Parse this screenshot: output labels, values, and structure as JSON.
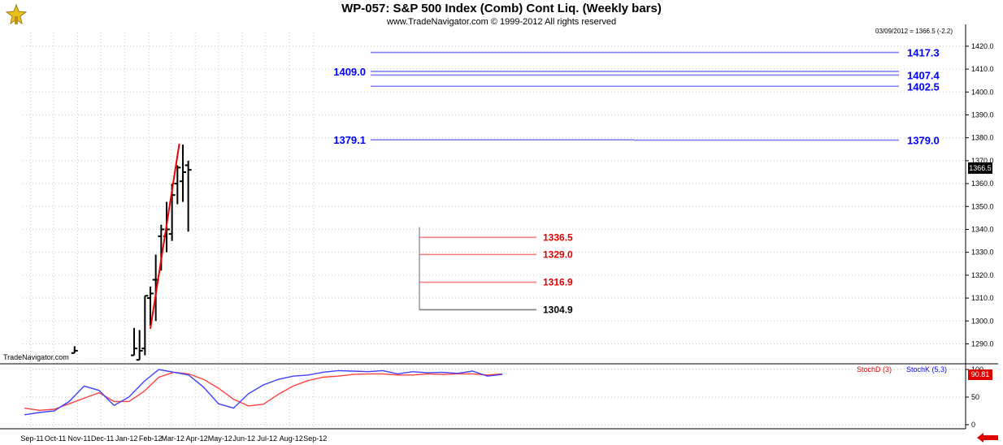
{
  "header": {
    "title": "WP-057:  S&P 500 Index (Comb) Cont Liq.  (Weekly bars)",
    "subtitle": "www.TradeNavigator.com © 1999-2012 All rights reserved",
    "info": "03/09/2012 = 1366.5 (-2.2)",
    "watermark": "TradeNavigator.com",
    "last_price_label": "1366.5",
    "stoch_value_label": "90.81",
    "stochd_label": "StochD (3)",
    "stochk_label": "StochK (5,3)"
  },
  "colors": {
    "blue_levels": "#0000ff",
    "blue_lines": "#8080ff",
    "red_levels": "#e00000",
    "red_lines": "#ff8080",
    "gray_line": "#808080",
    "bars": "#000000",
    "trend": "#ee0000",
    "stochd": "#ff4040",
    "stochk": "#4040ff",
    "grid": "#c8c8c8"
  },
  "chart_data": {
    "type": "bar",
    "title": "WP-057:  S&P 500 Index (Comb) Cont Liq.  (Weekly bars)",
    "y_ticks": [
      1290,
      1300,
      1310,
      1320,
      1330,
      1340,
      1350,
      1360,
      1370,
      1380,
      1390,
      1400,
      1410,
      1420
    ],
    "x_labels": [
      "Sep-11",
      "Oct-11",
      "Nov-11",
      "Dec-11",
      "Jan-12",
      "Feb-12",
      "Mar-12",
      "Apr-12",
      "May-12",
      "Jun-12",
      "Jul-12",
      "Aug-12",
      "Sep-12"
    ],
    "ylim": [
      1282,
      1426
    ],
    "bars": [
      {
        "date": "2011-10-28",
        "open": 1286,
        "high": 1289,
        "low": 1286,
        "close": 1287
      },
      {
        "date": "2012-01-13",
        "open": 1285,
        "high": 1297,
        "low": 1285,
        "close": 1288
      },
      {
        "date": "2012-01-20",
        "open": 1283,
        "high": 1296,
        "low": 1283,
        "close": 1287
      },
      {
        "date": "2012-01-27",
        "open": 1288,
        "high": 1311,
        "low": 1285,
        "close": 1311
      },
      {
        "date": "2012-02-03",
        "open": 1310,
        "high": 1315,
        "low": 1298,
        "close": 1312
      },
      {
        "date": "2012-02-10",
        "open": 1318,
        "high": 1329,
        "low": 1300,
        "close": 1318
      },
      {
        "date": "2012-02-17",
        "open": 1337,
        "high": 1342,
        "low": 1322,
        "close": 1340
      },
      {
        "date": "2012-02-24",
        "open": 1337,
        "high": 1352,
        "low": 1330,
        "close": 1340
      },
      {
        "date": "2012-03-02",
        "open": 1338,
        "high": 1360,
        "low": 1335,
        "close": 1355
      },
      {
        "date": "2012-03-09",
        "open": 1360,
        "high": 1368,
        "low": 1351,
        "close": 1367
      },
      {
        "date": "2012-03-16",
        "open": 1361,
        "high": 1377,
        "low": 1352,
        "close": 1365
      },
      {
        "date": "2012-03-23",
        "open": 1368,
        "high": 1370,
        "low": 1339,
        "close": 1366
      }
    ],
    "trendline": [
      {
        "date": "2012-02-03",
        "value": 1296.6
      },
      {
        "date": "2012-03-23",
        "value": 1377.4
      }
    ],
    "levels": [
      {
        "value": 1417.3,
        "label": "1417.3",
        "color": "blue"
      },
      {
        "value": 1409.0,
        "label": "1409.0",
        "color": "blue"
      },
      {
        "value": 1407.4,
        "label": "1407.4",
        "color": "blue"
      },
      {
        "value": 1402.5,
        "label": "1402.5",
        "color": "blue"
      },
      {
        "value": 1379.1,
        "label": "1379.1",
        "color": "blue"
      },
      {
        "value": 1379.0,
        "label": "1379.0",
        "color": "blue"
      },
      {
        "value": 1336.5,
        "label": "1336.5",
        "color": "red"
      },
      {
        "value": 1329.0,
        "label": "1329.0",
        "color": "red"
      },
      {
        "value": 1316.9,
        "label": "1316.9",
        "color": "red"
      },
      {
        "value": 1304.9,
        "label": "1304.9",
        "color": "gray"
      }
    ],
    "stochastic": {
      "y_ticks": [
        0,
        50,
        100
      ],
      "ylim": [
        0,
        100
      ],
      "stochd": [
        30,
        26,
        28,
        38,
        48,
        58,
        42,
        42,
        60,
        86,
        95,
        92,
        82,
        66,
        46,
        34,
        37,
        55,
        70,
        80,
        86,
        88,
        91,
        92,
        92,
        90,
        90,
        92,
        91,
        92,
        92,
        90,
        92
      ],
      "stochk": [
        18,
        22,
        25,
        42,
        70,
        62,
        35,
        50,
        78,
        100,
        95,
        90,
        68,
        38,
        30,
        56,
        72,
        82,
        88,
        90,
        95,
        98,
        97,
        96,
        98,
        92,
        96,
        94,
        95,
        93,
        97,
        88,
        91
      ]
    }
  }
}
